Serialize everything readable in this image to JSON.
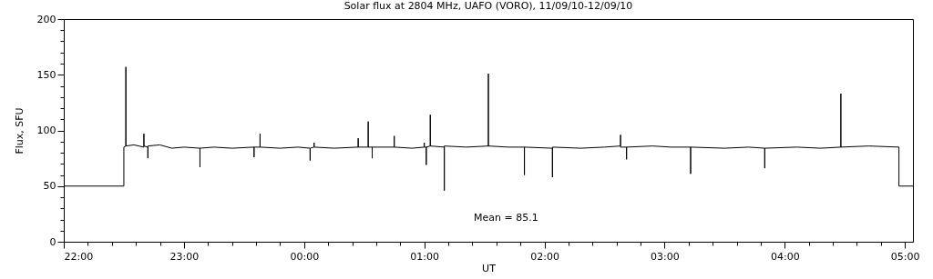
{
  "chart_data": {
    "type": "line",
    "title": "Solar flux at 2804 MHz, UAFO (VORO),  11/09/10-12/09/10",
    "xlabel": "UT",
    "ylabel": "Flux, SFU",
    "annotations": [
      "Mean =   85.1"
    ],
    "x": [
      "--09-11T22:00",
      "--09-11T22:30",
      "--09-11T22:30",
      "--09-11T22:31",
      "--09-11T22:31",
      "--09-11T22:31",
      "--09-11T22:35",
      "--09-11T22:40",
      "--09-11T22:40",
      "--09-11T22:40",
      "--09-11T22:42",
      "--09-11T22:42",
      "--09-11T22:42",
      "--09-11T22:48",
      "--09-11T22:54",
      "--09-11T23:00",
      "--09-11T23:08",
      "--09-11T23:08",
      "--09-11T23:08",
      "--09-11T23:15",
      "--09-11T23:24",
      "--09-11T23:35",
      "--09-11T23:35",
      "--09-11T23:35",
      "--09-11T23:38",
      "--09-11T23:38",
      "--09-11T23:38",
      "--09-11T23:48",
      "--09-11T23:57",
      "--09-12T00:03",
      "--09-12T00:03",
      "--09-12T00:03",
      "--09-12T00:05",
      "--09-12T00:05",
      "--09-12T00:05",
      "--09-12T00:15",
      "--09-12T00:27",
      "--09-12T00:27",
      "--09-12T00:27",
      "--09-12T00:32",
      "--09-12T00:32",
      "--09-12T00:32",
      "--09-12T00:34",
      "--09-12T00:34",
      "--09-12T00:34",
      "--09-12T00:45",
      "--09-12T00:45",
      "--09-12T00:45",
      "--09-12T00:54",
      "--09-12T01:00",
      "--09-12T01:00",
      "--09-12T01:00",
      "--09-12T01:01",
      "--09-12T01:01",
      "--09-12T01:01",
      "--09-12T01:03",
      "--09-12T01:03",
      "--09-12T01:03",
      "--09-12T01:10",
      "--09-12T01:10",
      "--09-12T01:10",
      "--09-12T01:21",
      "--09-12T01:32",
      "--09-12T01:32",
      "--09-12T01:32",
      "--09-12T01:42",
      "--09-12T01:50",
      "--09-12T01:50",
      "--09-12T01:50",
      "--09-12T02:04",
      "--09-12T02:04",
      "--09-12T02:04",
      "--09-12T02:18",
      "--09-12T02:30",
      "--09-12T02:38",
      "--09-12T02:38",
      "--09-12T02:38",
      "--09-12T02:41",
      "--09-12T02:41",
      "--09-12T02:41",
      "--09-12T02:54",
      "--09-12T03:03",
      "--09-12T03:13",
      "--09-12T03:13",
      "--09-12T03:13",
      "--09-12T03:30",
      "--09-12T03:42",
      "--09-12T03:50",
      "--09-12T03:50",
      "--09-12T03:50",
      "--09-12T04:06",
      "--09-12T04:18",
      "--09-12T04:28",
      "--09-12T04:28",
      "--09-12T04:28",
      "--09-12T04:42",
      "--09-12T04:57",
      "--09-12T04:57",
      "--09-12T05:04"
    ],
    "values": [
      50,
      50,
      85,
      86,
      157,
      86,
      87,
      85,
      97,
      86,
      85,
      75,
      86,
      87,
      84,
      85,
      84,
      67,
      84,
      85,
      84,
      85,
      76,
      85,
      85,
      97,
      85,
      84,
      85,
      84,
      73,
      84,
      85,
      89,
      85,
      84,
      85,
      93,
      85,
      85,
      108,
      85,
      85,
      75,
      85,
      85,
      95,
      85,
      84,
      85,
      89,
      85,
      85,
      69,
      85,
      86,
      114,
      86,
      85,
      46,
      86,
      85,
      86,
      151,
      86,
      85,
      85,
      60,
      85,
      84,
      58,
      85,
      84,
      85,
      86,
      96,
      85,
      85,
      74,
      85,
      86,
      85,
      85,
      61,
      85,
      84,
      85,
      84,
      66,
      84,
      85,
      84,
      85,
      133,
      85,
      86,
      85,
      50,
      50
    ],
    "color": "#000000",
    "xlim": [
      "--09-11T22:00",
      "--09-12T05:04"
    ],
    "xticks": [
      {
        "value": "--09-11T22:00",
        "label": "22:00"
      },
      {
        "value": "--09-11T22:12",
        "label": null
      },
      {
        "value": "--09-11T22:24",
        "label": null
      },
      {
        "value": "--09-11T22:36",
        "label": null
      },
      {
        "value": "--09-11T22:48",
        "label": null
      },
      {
        "value": "--09-11T23:00",
        "label": "23:00"
      },
      {
        "value": "--09-11T23:12",
        "label": null
      },
      {
        "value": "--09-11T23:24",
        "label": null
      },
      {
        "value": "--09-11T23:36",
        "label": null
      },
      {
        "value": "--09-11T23:48",
        "label": null
      },
      {
        "value": "--09-12T00:00",
        "label": "00:00"
      },
      {
        "value": "--09-12T00:12",
        "label": null
      },
      {
        "value": "--09-12T00:24",
        "label": null
      },
      {
        "value": "--09-12T00:36",
        "label": null
      },
      {
        "value": "--09-12T00:48",
        "label": null
      },
      {
        "value": "--09-12T01:00",
        "label": "01:00"
      },
      {
        "value": "--09-12T01:12",
        "label": null
      },
      {
        "value": "--09-12T01:24",
        "label": null
      },
      {
        "value": "--09-12T01:36",
        "label": null
      },
      {
        "value": "--09-12T01:48",
        "label": null
      },
      {
        "value": "--09-12T02:00",
        "label": "02:00"
      },
      {
        "value": "--09-12T02:12",
        "label": null
      },
      {
        "value": "--09-12T02:24",
        "label": null
      },
      {
        "value": "--09-12T02:36",
        "label": null
      },
      {
        "value": "--09-12T02:48",
        "label": null
      },
      {
        "value": "--09-12T03:00",
        "label": "03:00"
      },
      {
        "value": "--09-12T03:12",
        "label": null
      },
      {
        "value": "--09-12T03:24",
        "label": null
      },
      {
        "value": "--09-12T03:36",
        "label": null
      },
      {
        "value": "--09-12T03:48",
        "label": null
      },
      {
        "value": "--09-12T04:00",
        "label": "04:00"
      },
      {
        "value": "--09-12T04:12",
        "label": null
      },
      {
        "value": "--09-12T04:24",
        "label": null
      },
      {
        "value": "--09-12T04:36",
        "label": null
      },
      {
        "value": "--09-12T04:48",
        "label": null
      },
      {
        "value": "--09-12T05:00",
        "label": "05:00"
      }
    ],
    "ylim": [
      0,
      200
    ],
    "yticks": [
      0,
      {
        "value": 10,
        "label": null
      },
      {
        "value": 20,
        "label": null
      },
      {
        "value": 30,
        "label": null
      },
      {
        "value": 40,
        "label": null
      },
      50,
      {
        "value": 60,
        "label": null
      },
      {
        "value": 70,
        "label": null
      },
      {
        "value": 80,
        "label": null
      },
      {
        "value": 90,
        "label": null
      },
      100,
      {
        "value": 110,
        "label": null
      },
      {
        "value": 120,
        "label": null
      },
      {
        "value": 130,
        "label": null
      },
      {
        "value": 140,
        "label": null
      },
      150,
      {
        "value": 160,
        "label": null
      },
      {
        "value": 170,
        "label": null
      },
      {
        "value": 180,
        "label": null
      },
      {
        "value": 190,
        "label": null
      },
      200
    ],
    "grid": false
  }
}
